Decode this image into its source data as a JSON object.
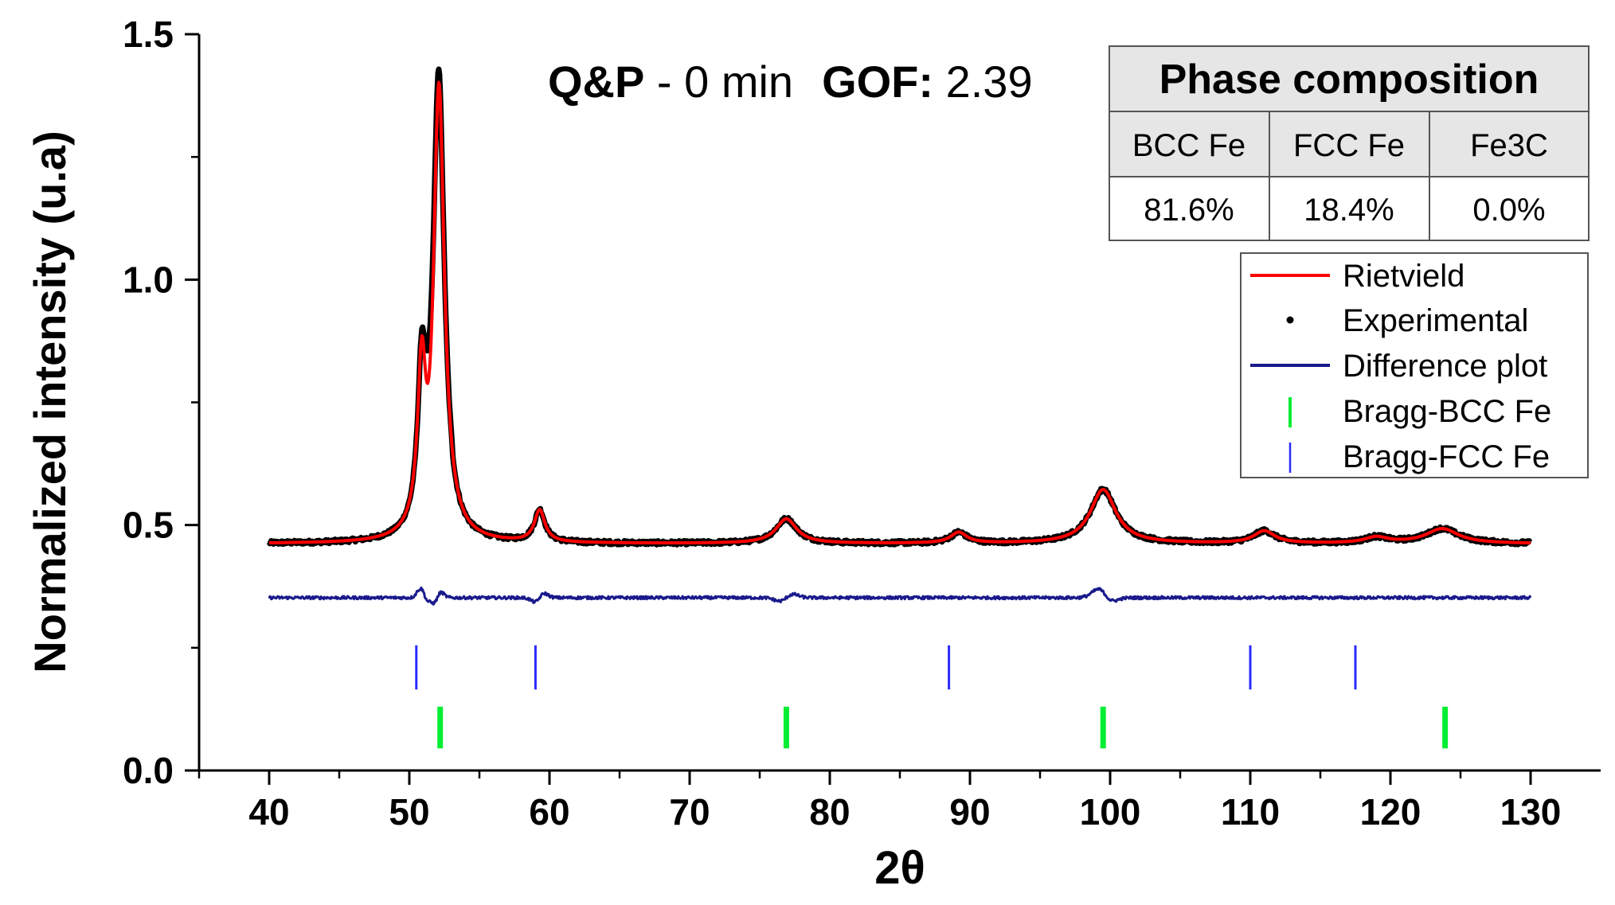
{
  "chart_data": {
    "type": "line",
    "title": "Q&P - 0 min",
    "annotation": {
      "sample_bold": "Q&P",
      "sample_rest": " - 0 min",
      "gof_label": "GOF:",
      "gof_value": " 2.39"
    },
    "xlabel": "2θ",
    "ylabel": "Normalized intensity (u.a)",
    "xlim": [
      35,
      135
    ],
    "ylim": [
      0.0,
      1.5
    ],
    "xticks": [
      40,
      50,
      60,
      70,
      80,
      90,
      100,
      110,
      120,
      130
    ],
    "yticks": [
      0.0,
      0.5,
      1.0,
      1.5
    ],
    "ytick_labels": [
      "0.0",
      "0.5",
      "1.0",
      "1.5"
    ],
    "baseline": 0.462,
    "peaks": [
      {
        "center": 50.9,
        "height": 0.31,
        "width": 0.35
      },
      {
        "center": 52.1,
        "height": 0.93,
        "width": 0.48
      },
      {
        "center": 59.3,
        "height": 0.065,
        "width": 0.45
      },
      {
        "center": 76.9,
        "height": 0.05,
        "width": 0.9
      },
      {
        "center": 89.2,
        "height": 0.022,
        "width": 0.7
      },
      {
        "center": 99.5,
        "height": 0.11,
        "width": 1.1
      },
      {
        "center": 111.0,
        "height": 0.025,
        "width": 0.9
      },
      {
        "center": 119.0,
        "height": 0.012,
        "width": 1.0
      },
      {
        "center": 123.7,
        "height": 0.03,
        "width": 1.4
      }
    ],
    "series": [
      {
        "name": "Rietvield",
        "color": "#ff0000",
        "style": "line"
      },
      {
        "name": "Experimental",
        "color": "#000000",
        "style": "dots"
      },
      {
        "name": "Difference plot",
        "color": "#1a1a8c",
        "style": "line"
      },
      {
        "name": "Bragg-BCC Fe",
        "color": "#00ee33",
        "style": "ticks"
      },
      {
        "name": "Bragg-FCC Fe",
        "color": "#2a2aff",
        "style": "ticks"
      }
    ],
    "difference_baseline": 0.352,
    "bragg_bcc": {
      "positions": [
        52.2,
        76.9,
        99.5,
        123.9
      ],
      "y_range": [
        0.045,
        0.13
      ]
    },
    "bragg_fcc": {
      "positions": [
        50.5,
        59.0,
        88.5,
        110.0,
        117.5
      ],
      "y_range": [
        0.165,
        0.255
      ]
    },
    "legend_position": "top-right"
  },
  "phase_table": {
    "title": "Phase composition",
    "headers": [
      "BCC Fe",
      "FCC Fe",
      "Fe3C"
    ],
    "values": [
      "81.6%",
      "18.4%",
      "0.0%"
    ]
  }
}
